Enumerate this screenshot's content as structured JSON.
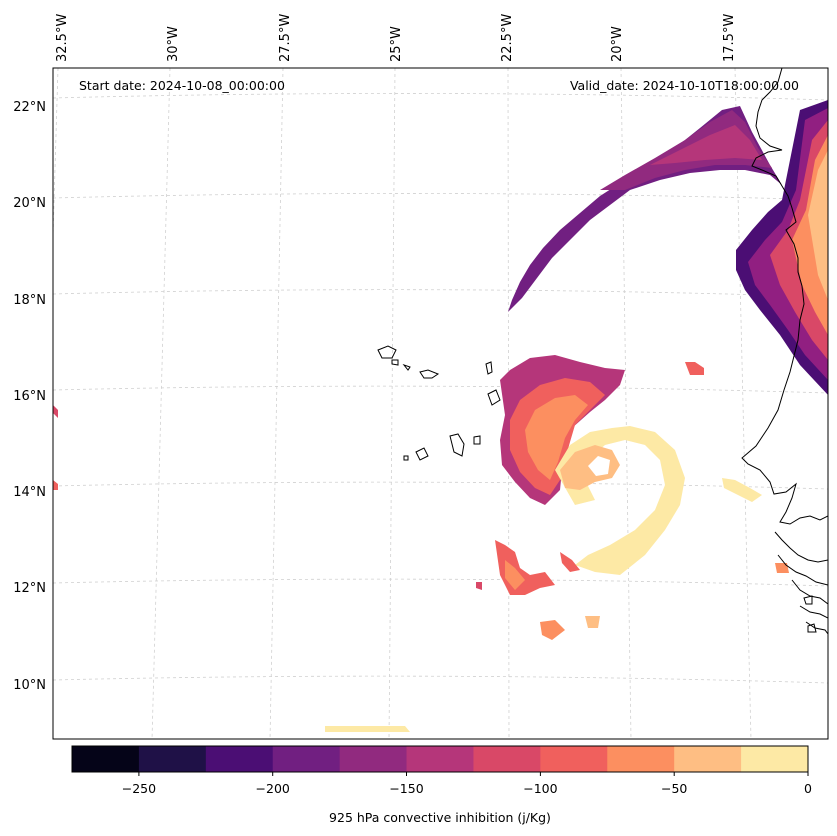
{
  "map": {
    "start_date": "Start date: 2024-10-08_00:00:00",
    "valid_date": "Valid_date: 2024-10-10T18:00:00.00",
    "lon_labels": [
      "32.5°W",
      "30°W",
      "27.5°W",
      "25°W",
      "22.5°W",
      "20°W",
      "17.5°W"
    ],
    "lat_labels": [
      "22°N",
      "20°N",
      "18°N",
      "16°N",
      "14°N",
      "12°N",
      "10°N"
    ]
  },
  "colorbar": {
    "label": "925 hPa convective inhibition (j/Kg)",
    "tick_labels": [
      "−250",
      "−200",
      "−150",
      "−100",
      "−50",
      "0"
    ],
    "bins": [
      {
        "from": -275,
        "to": -250,
        "color": "#050418"
      },
      {
        "from": -250,
        "to": -225,
        "color": "#1f1147"
      },
      {
        "from": -225,
        "to": -200,
        "color": "#4b0e74"
      },
      {
        "from": -200,
        "to": -175,
        "color": "#711f81"
      },
      {
        "from": -175,
        "to": -150,
        "color": "#912a7f"
      },
      {
        "from": -150,
        "to": -125,
        "color": "#b5367a"
      },
      {
        "from": -125,
        "to": -100,
        "color": "#d94867"
      },
      {
        "from": -100,
        "to": -75,
        "color": "#f0605d"
      },
      {
        "from": -75,
        "to": -50,
        "color": "#fc8f60"
      },
      {
        "from": -50,
        "to": -25,
        "color": "#febe83"
      },
      {
        "from": -25,
        "to": 0,
        "color": "#fde9a5"
      }
    ]
  },
  "colors": {
    "coast": "#000000",
    "grid": "#d0d0d0"
  }
}
